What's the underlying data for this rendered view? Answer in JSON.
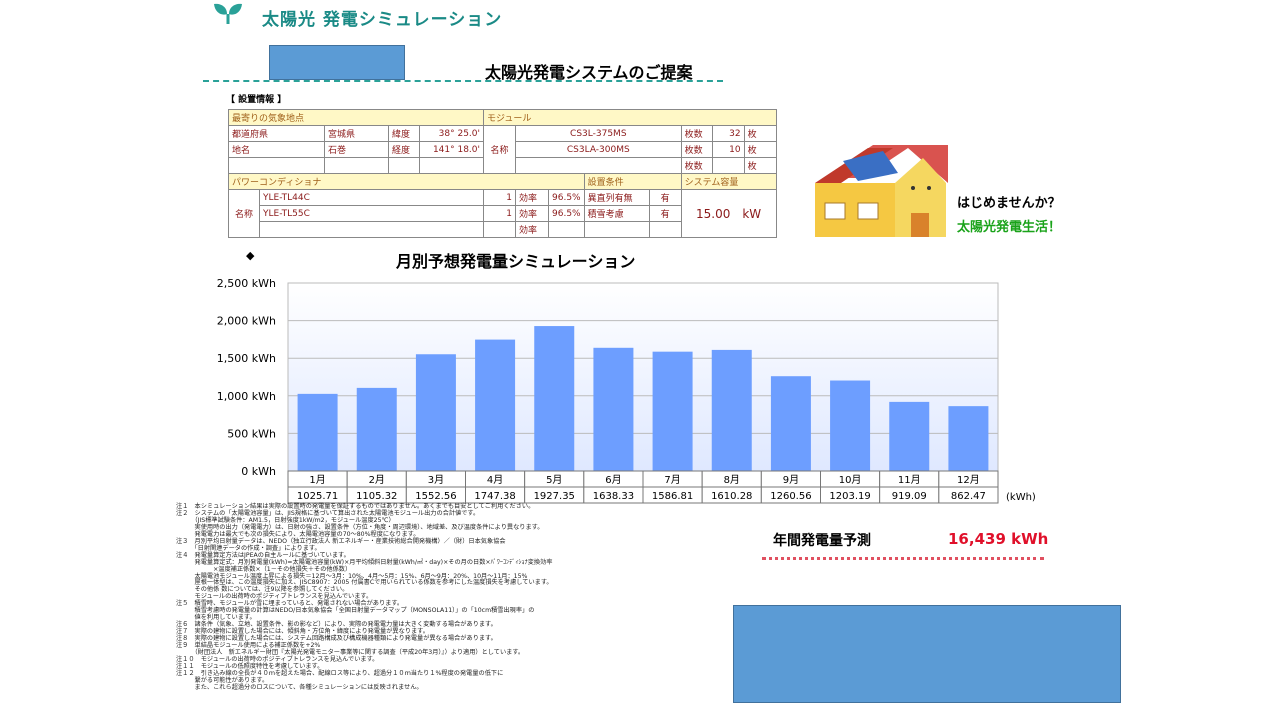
{
  "header": {
    "title": "太陽光 発電シミュレーション",
    "proposal": "太陽光発電システムのご提案",
    "section_label": "【 設置情報 】"
  },
  "info": {
    "weather_header": "最寄りの気象地点",
    "module_header": "モジュール",
    "pref_label": "都道府県",
    "pref": "宮城県",
    "lat_label": "緯度",
    "lat": "38° 25.0'",
    "place_label": "地名",
    "place": "石巻",
    "lon_label": "経度",
    "lon": "141° 18.0'",
    "name_label": "名称",
    "count_label": "枚数",
    "unit_label": "枚",
    "modules": [
      {
        "model": "CS3L-375MS",
        "count": "32"
      },
      {
        "model": "CS3LA-300MS",
        "count": "10"
      }
    ],
    "pcs_header": "パワーコンディショナ",
    "cond_header": "設置条件",
    "capacity_header": "システム容量",
    "eff_label": "効率",
    "pcs": [
      {
        "model": "YLE-TL44C",
        "qty": "1",
        "eff": "96.5%"
      },
      {
        "model": "YLE-TL55C",
        "qty": "1",
        "eff": "96.5%"
      }
    ],
    "cond1_label": "異直列有無",
    "cond1": "有",
    "cond2_label": "積雪考慮",
    "cond2": "有",
    "capacity": "15.00　kW"
  },
  "promo": {
    "line1": "はじめませんか？",
    "line2": "太陽光発電生活！"
  },
  "chart_title": "月別予想発電量シミュレーション",
  "chart_data": {
    "type": "bar",
    "categories": [
      "1月",
      "2月",
      "3月",
      "4月",
      "5月",
      "6月",
      "7月",
      "8月",
      "9月",
      "10月",
      "11月",
      "12月"
    ],
    "values": [
      1025.71,
      1105.32,
      1552.56,
      1747.38,
      1927.35,
      1638.33,
      1586.81,
      1610.28,
      1260.56,
      1203.19,
      919.09,
      862.47
    ],
    "value_labels": [
      "1025.71",
      "1105.32",
      "1552.56",
      "1747.38",
      "1927.35",
      "1638.33",
      "1586.81",
      "1610.28",
      "1260.56",
      "1203.19",
      "919.09",
      "862.47"
    ],
    "yticks": [
      "0 kWh",
      "500 kWh",
      "1,000 kWh",
      "1,500 kWh",
      "2,000 kWh",
      "2,500 kWh"
    ],
    "ylim": [
      0,
      2500
    ],
    "grid": true,
    "bar_color": "#6d9eff",
    "unit": "(kWh)"
  },
  "annual": {
    "label": "年間発電量予測",
    "value": "16,439 kWh"
  },
  "notes": "注１　本シミュレーション結果は実際の設置時の発電量を保証するものではありません。あくまでも目安としてご利用ください。\n注２　システムの「太陽電池容量」は、JIS規格に基づいて算出された太陽電池モジュール出力の合計値です。\n　　　（JIS標準試験条件：AM1.5，日射強度1kW/m2，モジュール温度25℃）\n　　　実使用時の出力（発電電力）は、日射の強さ、設置条件（方位・角度・周辺環境）、地域差、及び温度条件により異なります。\n　　　発電電力は最大でも次の損失により、太陽電池容量の70～80%程度になります。\n注３　月別平均日射量データは、NEDO（独立行政法人 新エネルギー・産業技術総合開発機構）／（財）日本気象協会\n　　　「日射関連データの作成・調査」によります。\n注４　発電量算定方法はJPEAの自主ルールに基づいています。\n　　　発電量算定式：月別発電量(kWh)=太陽電池容量(kW)×月平均傾斜日射量(kWh/㎡・day)×その月の日数×ﾊﾟﾜｰｺﾝﾃﾞｨｼｮﾅ変換効率\n　　　　　　×温度補正係数×（1－その他損失＋その他係数）\n　　　太陽電池モジュール温度上昇による損失＝12月～3月：10%、4月～5月：15%、6月～9月：20%、10月～11月：15%\n　　　屋根一体型は、この温度損失に加え、JISC8907：2005 付属書Cで用いられている係数を参考にした温度損失を考慮しています。\n　　　その他係 数については、注9以降を参照してください。\n　　　モジュールの出荷時のポジティブトレランスを見込んでいます。\n注５　積雪時、モジュールが雪に埋まっていると、発電されない場合があります。\n　　　積雪考慮時の発電量の計算はNEDO/日本気象協会「全国日射量データマップ（MONSOLA11）」の「10cm積雪出現率」の\n　　　値を利用しています。\n注６　諸条件（気象、立地、設置条件、影の影など）により、実際の発電電力量は大きく変動する場合があります。\n注７　実際の建物に設置した場合には、傾斜角・方位角・緯度により発電量が異なります。\n注８　実際の建物に設置した場合には、システム回路構成及び構成機器種類により発電量が異なる場合があります。\n注９　単結晶モジュール使用による補正係数を+2%\n　　　（財団法人　新エネルギー財団『太陽光発電モニター事業等に関する調査（平成20年3月）』）より適用）としています。\n注１０　モジュールの出荷時のポジティブトレランスを見込んでいます。\n注１１　モジュールの低照度特性を考慮しています。\n注１２　引き込み線の全長が４０ｍを超えた場合、配線ロス等により、超過分１０ｍ当たり１%程度の発電量の低下に\n　　　繋がる可能性があります。\n　　　また、これら超過分のロスについて、各種シミュレーションには反映されません。"
}
